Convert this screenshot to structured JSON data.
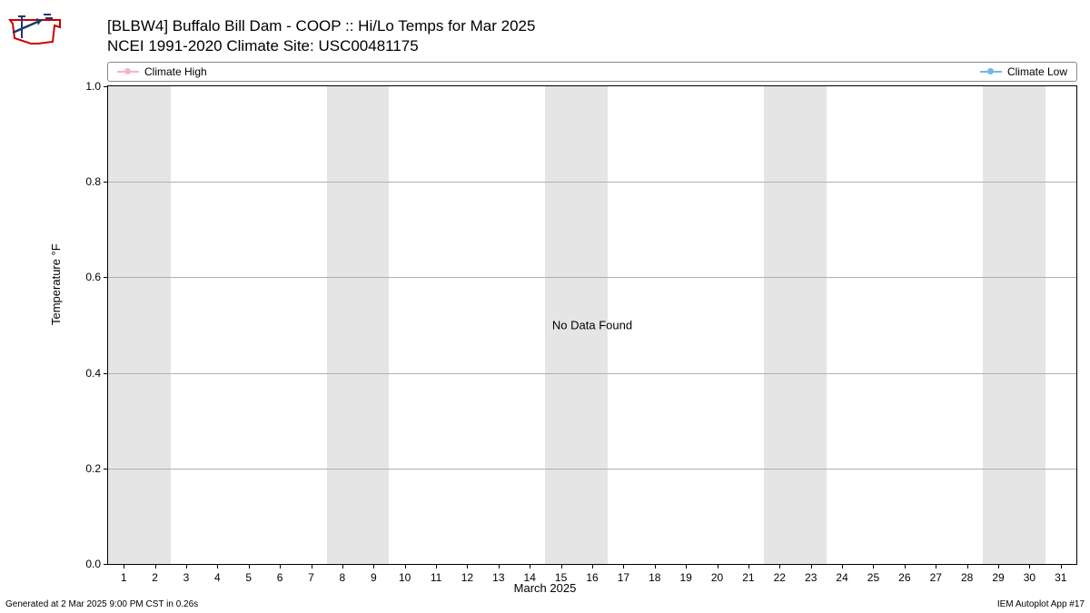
{
  "logo": {
    "outline_color": "#cc0000",
    "arrow_color": "#1a3a6e"
  },
  "title": {
    "line1": "[BLBW4] Buffalo Bill Dam - COOP :: Hi/Lo Temps for Mar 2025",
    "line2": "NCEI 1991-2020 Climate Site: USC00481175",
    "fontsize": 17
  },
  "legend": {
    "high": {
      "label": "Climate High",
      "color": "#f4b6c2"
    },
    "low": {
      "label": "Climate Low",
      "color": "#6fb7e8"
    }
  },
  "chart": {
    "type": "line",
    "background_color": "#ffffff",
    "grid_color": "#b0b0b0",
    "band_color": "#e5e5e5",
    "ylabel": "Temperature °F",
    "xlabel": "March 2025",
    "ylim": [
      0.0,
      1.0
    ],
    "yticks": [
      0.0,
      0.2,
      0.4,
      0.6,
      0.8,
      1.0
    ],
    "ytick_labels": [
      "0.0",
      "0.2",
      "0.4",
      "0.6",
      "0.8",
      "1.0"
    ],
    "xlim": [
      0.5,
      31.5
    ],
    "xticks": [
      1,
      2,
      3,
      4,
      5,
      6,
      7,
      8,
      9,
      10,
      11,
      12,
      13,
      14,
      15,
      16,
      17,
      18,
      19,
      20,
      21,
      22,
      23,
      24,
      25,
      26,
      27,
      28,
      29,
      30,
      31
    ],
    "weekend_bands": [
      [
        0.5,
        2.5
      ],
      [
        7.5,
        9.5
      ],
      [
        14.5,
        16.5
      ],
      [
        21.5,
        23.5
      ],
      [
        28.5,
        30.5
      ]
    ],
    "center_message": "No Data Found",
    "series": {
      "climate_high": [],
      "climate_low": []
    }
  },
  "footer": {
    "left": "Generated at 2 Mar 2025 9:00 PM CST in 0.26s",
    "right": "IEM Autoplot App #17"
  }
}
